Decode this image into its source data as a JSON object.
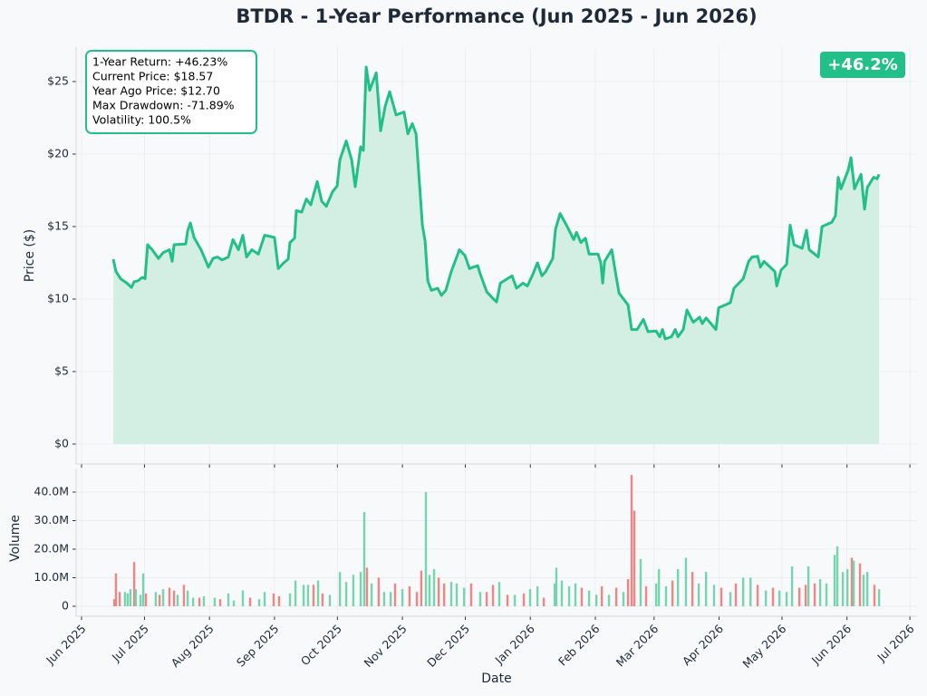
{
  "chart_data": [
    {
      "type": "line",
      "title": "BTDR - 1-Year Performance (Jun 2025 - Jun 2026)",
      "ylabel": "Price ($)",
      "color": "#22bf88",
      "fill": "#d3efe3",
      "grid": true,
      "annotations": [
        "1-Year Return: +46.23%",
        "Current Price: $18.57",
        "Year Ago Price: $12.70",
        "Max Drawdown: -71.89%",
        "Volatility: 100.5%"
      ],
      "badge": "+46.2%",
      "xlim": [
        -2.6,
        398.4
      ],
      "ylim": [
        -1.375,
        27.375
      ],
      "yticks": [
        {
          "value": 0,
          "label": "$0"
        },
        {
          "value": 5,
          "label": "$5"
        },
        {
          "value": 10,
          "label": "$10"
        },
        {
          "value": 15,
          "label": "$15"
        },
        {
          "value": 20,
          "label": "$20"
        },
        {
          "value": 25,
          "label": "$25"
        }
      ],
      "x": [
        15.1,
        16.4,
        18.6,
        21.6,
        23.8,
        25.1,
        26.8,
        29.0,
        30.3,
        31.5,
        33.7,
        36.7,
        38.9,
        41.9,
        43.2,
        44.1,
        49.7,
        50.6,
        51.9,
        53.6,
        57.0,
        60.5,
        62.7,
        64.8,
        67.0,
        70.0,
        72.2,
        74.8,
        76.9,
        78.7,
        81.2,
        84.3,
        87.3,
        92.0,
        93.8,
        96.4,
        98.5,
        99.4,
        101.6,
        102.4,
        105.0,
        107.2,
        109.3,
        112.4,
        114.5,
        116.7,
        119.7,
        121.9,
        123.2,
        126.2,
        128.8,
        130.5,
        133.1,
        134.4,
        135.7,
        137.4,
        140.5,
        142.6,
        144.8,
        146.9,
        150.0,
        153.8,
        155.6,
        157.7,
        159.5,
        161.2,
        162.5,
        163.8,
        165.1,
        166.8,
        169.8,
        171.6,
        173.7,
        176.3,
        178.5,
        180.2,
        182.8,
        185.0,
        186.7,
        188.9,
        190.1,
        193.2,
        195.8,
        197.9,
        199.7,
        205.3,
        207.4,
        210.5,
        212.6,
        215.2,
        217.4,
        219.5,
        221.3,
        224.7,
        226.0,
        228.2,
        231.2,
        234.7,
        236.0,
        238.1,
        240.3,
        242.0,
        246.3,
        247.6,
        248.5,
        249.4,
        252.8,
        255.0,
        256.3,
        260.6,
        262.3,
        264.9,
        267.9,
        270.1,
        274.0,
        275.7,
        277.0,
        278.3,
        281.3,
        283.1,
        284.4,
        286.9,
        288.7,
        290.4,
        291.7,
        294.7,
        296.0,
        297.8,
        302.5,
        303.8,
        309.4,
        311.1,
        315.5,
        318.1,
        319.8,
        322.4,
        323.7,
        325.4,
        330.6,
        331.5,
        333.6,
        336.2,
        337.9,
        339.7,
        343.6,
        345.7,
        347.0,
        351.3,
        353.1,
        357.8,
        359.5,
        360.8,
        362.1,
        365.6,
        366.9,
        368.6,
        371.7,
        373.4,
        374.7,
        377.7,
        379.4,
        380.3
      ],
      "values": [
        12.75,
        11.9,
        11.4,
        11.1,
        10.8,
        11.2,
        11.25,
        11.5,
        11.4,
        13.75,
        13.4,
        12.8,
        13.2,
        13.4,
        12.6,
        13.75,
        13.8,
        14.7,
        15.25,
        14.25,
        13.4,
        12.2,
        12.8,
        12.9,
        12.7,
        12.9,
        14.1,
        13.4,
        14.4,
        12.9,
        13.4,
        13.1,
        14.4,
        14.25,
        12.1,
        12.5,
        12.75,
        13.9,
        14.2,
        16.1,
        16.0,
        16.9,
        16.5,
        18.1,
        16.75,
        16.4,
        17.4,
        17.8,
        19.6,
        20.9,
        19.6,
        17.75,
        20.5,
        20.25,
        26.0,
        24.4,
        25.6,
        21.6,
        23.3,
        24.3,
        22.7,
        22.9,
        21.4,
        22.1,
        21.4,
        17.8,
        15.1,
        14.0,
        11.25,
        10.6,
        10.75,
        10.25,
        10.6,
        11.9,
        12.75,
        13.4,
        13.0,
        12.1,
        12.2,
        12.3,
        11.75,
        10.5,
        10.1,
        9.8,
        11.1,
        11.6,
        10.75,
        11.1,
        10.9,
        11.7,
        12.5,
        11.6,
        11.9,
        12.8,
        14.8,
        15.9,
        15.1,
        14.1,
        14.6,
        13.9,
        14.2,
        13.1,
        13.1,
        12.5,
        11.1,
        12.6,
        13.4,
        11.5,
        10.4,
        9.6,
        7.9,
        7.9,
        8.6,
        7.75,
        7.8,
        7.4,
        7.9,
        7.25,
        7.4,
        7.9,
        7.4,
        7.9,
        9.25,
        8.75,
        8.4,
        8.75,
        8.3,
        8.7,
        7.9,
        9.4,
        9.75,
        10.75,
        11.4,
        12.6,
        12.9,
        12.95,
        12.2,
        12.6,
        11.9,
        10.9,
        12.0,
        12.4,
        15.1,
        13.75,
        13.5,
        14.75,
        13.4,
        12.9,
        15.0,
        15.3,
        15.75,
        18.4,
        17.6,
        18.9,
        19.75,
        17.6,
        18.6,
        16.2,
        17.7,
        18.4,
        18.3,
        18.6
      ]
    },
    {
      "type": "bar",
      "ylabel": "Volume",
      "xlabel": "Date",
      "grid": true,
      "xlim": [
        -2.6,
        398.4
      ],
      "xticks": [
        {
          "value": 0,
          "label": "Jun 2025"
        },
        {
          "value": 30,
          "label": "Jul 2025"
        },
        {
          "value": 61,
          "label": "Aug 2025"
        },
        {
          "value": 92,
          "label": "Sep 2025"
        },
        {
          "value": 122,
          "label": "Oct 2025"
        },
        {
          "value": 153,
          "label": "Nov 2025"
        },
        {
          "value": 183,
          "label": "Dec 2025"
        },
        {
          "value": 214,
          "label": "Jan 2026"
        },
        {
          "value": 245,
          "label": "Feb 2026"
        },
        {
          "value": 273,
          "label": "Mar 2026"
        },
        {
          "value": 304,
          "label": "Apr 2026"
        },
        {
          "value": 334,
          "label": "May 2026"
        },
        {
          "value": 365,
          "label": "Jun 2026"
        },
        {
          "value": 395,
          "label": "Jul 2026"
        }
      ],
      "ylim": [
        -3.5,
        48.25
      ],
      "yticks": [
        0,
        {
          "value": 10,
          "label": "10.0M"
        },
        {
          "value": 20,
          "label": "20.0M"
        },
        {
          "value": 30,
          "label": "30.0M"
        },
        {
          "value": 40,
          "label": "40.0M"
        }
      ],
      "x": [
        15.6,
        16.4,
        18.2,
        20.7,
        22.0,
        23.3,
        25.1,
        25.9,
        28.1,
        29.4,
        30.7,
        35.4,
        37.2,
        38.9,
        41.9,
        44.1,
        45.8,
        48.8,
        50.6,
        53.2,
        56.2,
        58.3,
        63.5,
        66.1,
        70.0,
        72.6,
        76.9,
        80.4,
        84.7,
        87.3,
        91.6,
        94.2,
        99.4,
        102.0,
        105.9,
        108.0,
        110.6,
        112.8,
        114.9,
        118.4,
        123.2,
        126.2,
        129.6,
        133.1,
        134.8,
        136.1,
        138.3,
        141.7,
        144.3,
        147.4,
        149.5,
        153.0,
        156.4,
        159.9,
        162.0,
        164.2,
        165.9,
        168.1,
        170.3,
        172.9,
        176.3,
        178.9,
        182.4,
        185.8,
        190.1,
        193.2,
        196.2,
        199.2,
        203.1,
        206.6,
        210.9,
        213.9,
        217.4,
        220.4,
        225.6,
        226.4,
        229.0,
        232.5,
        235.5,
        238.5,
        242.0,
        245.5,
        248.1,
        251.5,
        255.0,
        258.4,
        260.6,
        262.3,
        263.6,
        266.6,
        269.2,
        274.0,
        275.3,
        278.7,
        281.8,
        284.4,
        288.2,
        291.3,
        294.3,
        297.8,
        301.6,
        305.1,
        309.4,
        312.0,
        315.5,
        319.0,
        322.4,
        326.3,
        329.7,
        332.8,
        336.2,
        338.8,
        342.3,
        345.3,
        346.6,
        349.6,
        352.2,
        355.2,
        359.1,
        360.4,
        363.0,
        365.2,
        367.3,
        368.2,
        371.2,
        372.9,
        374.7,
        378.1,
        380.3
      ],
      "values": [
        2.5,
        11.5,
        5,
        5,
        4.5,
        6,
        15.5,
        6,
        4,
        11.5,
        4.5,
        5,
        4,
        6,
        6.5,
        5.5,
        4,
        7.5,
        5.5,
        3,
        3,
        3.5,
        3,
        2.5,
        4.5,
        2,
        5.5,
        3,
        2.5,
        5,
        4.5,
        3.5,
        4.5,
        9,
        7.5,
        7.5,
        7.5,
        9,
        4.5,
        4,
        12,
        8.5,
        11,
        12,
        33,
        13.5,
        8,
        10,
        5,
        5,
        8,
        6,
        7,
        5,
        12.5,
        40,
        11,
        13,
        10,
        8,
        8.5,
        8,
        6.5,
        8,
        5,
        5,
        7.5,
        8.5,
        4,
        4,
        4.5,
        6,
        7,
        3,
        8,
        13.5,
        9,
        7,
        8,
        6.5,
        5.5,
        4,
        7,
        4,
        6.5,
        5,
        9.5,
        46,
        33.5,
        16.5,
        7,
        8,
        13,
        7,
        9,
        13,
        17,
        12,
        8,
        12,
        7.5,
        6.5,
        5,
        8,
        10,
        10,
        7.5,
        5.5,
        6.5,
        5.5,
        5,
        14,
        6.5,
        7.5,
        14,
        8,
        9.5,
        8,
        18,
        21,
        12,
        13,
        17,
        16,
        15,
        11,
        12,
        7.5,
        6
      ],
      "colors": [
        "#ee8080",
        "#ee8080",
        "#ee8080",
        "#6fd3ab",
        "#6fd3ab",
        "#6fd3ab",
        "#ee8080",
        "#6fd3ab",
        "#6fd3ab",
        "#6fd3ab",
        "#ee8080",
        "#6fd3ab",
        "#ee8080",
        "#6fd3ab",
        "#ee8080",
        "#ee8080",
        "#6fd3ab",
        "#ee8080",
        "#6fd3ab",
        "#6fd3ab",
        "#ee8080",
        "#6fd3ab",
        "#6fd3ab",
        "#ee8080",
        "#6fd3ab",
        "#6fd3ab",
        "#6fd3ab",
        "#ee8080",
        "#6fd3ab",
        "#6fd3ab",
        "#ee8080",
        "#ee8080",
        "#6fd3ab",
        "#6fd3ab",
        "#6fd3ab",
        "#6fd3ab",
        "#ee8080",
        "#6fd3ab",
        "#ee8080",
        "#6fd3ab",
        "#6fd3ab",
        "#6fd3ab",
        "#6fd3ab",
        "#6fd3ab",
        "#6fd3ab",
        "#ee8080",
        "#6fd3ab",
        "#ee8080",
        "#6fd3ab",
        "#6fd3ab",
        "#ee8080",
        "#6fd3ab",
        "#ee8080",
        "#ee8080",
        "#ee8080",
        "#6fd3ab",
        "#6fd3ab",
        "#6fd3ab",
        "#ee8080",
        "#ee8080",
        "#6fd3ab",
        "#6fd3ab",
        "#6fd3ab",
        "#ee8080",
        "#6fd3ab",
        "#ee8080",
        "#ee8080",
        "#6fd3ab",
        "#ee8080",
        "#6fd3ab",
        "#ee8080",
        "#6fd3ab",
        "#6fd3ab",
        "#ee8080",
        "#6fd3ab",
        "#6fd3ab",
        "#6fd3ab",
        "#6fd3ab",
        "#6fd3ab",
        "#ee8080",
        "#6fd3ab",
        "#6fd3ab",
        "#ee8080",
        "#6fd3ab",
        "#ee8080",
        "#6fd3ab",
        "#ee8080",
        "#ee8080",
        "#ee8080",
        "#6fd3ab",
        "#ee8080",
        "#6fd3ab",
        "#6fd3ab",
        "#6fd3ab",
        "#ee8080",
        "#6fd3ab",
        "#6fd3ab",
        "#ee8080",
        "#6fd3ab",
        "#6fd3ab",
        "#6fd3ab",
        "#ee8080",
        "#6fd3ab",
        "#ee8080",
        "#6fd3ab",
        "#6fd3ab",
        "#ee8080",
        "#6fd3ab",
        "#ee8080",
        "#6fd3ab",
        "#6fd3ab",
        "#6fd3ab",
        "#ee8080",
        "#ee8080",
        "#6fd3ab",
        "#ee8080",
        "#6fd3ab",
        "#6fd3ab",
        "#6fd3ab",
        "#6fd3ab",
        "#6fd3ab",
        "#6fd3ab",
        "#ee8080",
        "#6fd3ab",
        "#ee8080",
        "#6fd3ab",
        "#6fd3ab",
        "#ee8080",
        "#6fd3ab"
      ]
    }
  ]
}
